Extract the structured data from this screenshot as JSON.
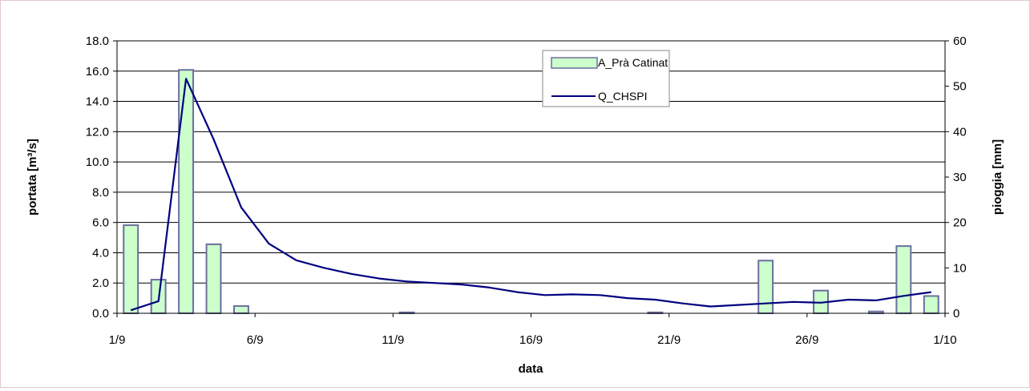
{
  "chart_data": {
    "type": "bar+line",
    "title": "",
    "xlabel": "data",
    "ylabel_left": "portata [m³/s]",
    "ylabel_right": "pioggia [mm]",
    "x_ticks": [
      "1/9",
      "6/9",
      "11/9",
      "16/9",
      "21/9",
      "26/9",
      "1/10"
    ],
    "y_left_ticks": [
      "0.0",
      "2.0",
      "4.0",
      "6.0",
      "8.0",
      "10.0",
      "12.0",
      "14.0",
      "16.0",
      "18.0"
    ],
    "y_right_ticks": [
      "0",
      "10",
      "20",
      "30",
      "40",
      "50",
      "60"
    ],
    "y_left_range": [
      0,
      18
    ],
    "y_right_range": [
      0,
      60
    ],
    "x_range": [
      "1/9",
      "1/10"
    ],
    "grid": "horizontal",
    "legend_position": "top-center",
    "series": [
      {
        "name": "A_Prà Catinat",
        "type": "bar",
        "axis": "right",
        "color": "#ccffcc",
        "edge_color": "#6b6f9e",
        "x": [
          "1/9",
          "2/9",
          "3/9",
          "4/9",
          "5/9",
          "6/9",
          "7/9",
          "8/9",
          "9/9",
          "10/9",
          "11/9",
          "12/9",
          "13/9",
          "14/9",
          "15/9",
          "16/9",
          "17/9",
          "18/9",
          "19/9",
          "20/9",
          "21/9",
          "22/9",
          "23/9",
          "24/9",
          "25/9",
          "26/9",
          "27/9",
          "28/9",
          "29/9",
          "30/9"
        ],
        "values": [
          19.4,
          7.4,
          53.6,
          15.2,
          1.6,
          0,
          0,
          0,
          0,
          0,
          0.2,
          0,
          0,
          0,
          0,
          0,
          0,
          0,
          0,
          0.2,
          0,
          0,
          0,
          11.6,
          0,
          5.0,
          0,
          0.4,
          14.8,
          3.8
        ]
      },
      {
        "name": "Q_CHSPI",
        "type": "line",
        "axis": "left",
        "color": "#000080",
        "x": [
          "1/9",
          "2/9",
          "3/9",
          "4/9",
          "5/9",
          "6/9",
          "7/9",
          "8/9",
          "9/9",
          "10/9",
          "11/9",
          "12/9",
          "13/9",
          "14/9",
          "15/9",
          "16/9",
          "17/9",
          "18/9",
          "19/9",
          "20/9",
          "21/9",
          "22/9",
          "23/9",
          "24/9",
          "25/9",
          "26/9",
          "27/9",
          "28/9",
          "29/9",
          "30/9"
        ],
        "values": [
          0.2,
          0.8,
          15.5,
          11.5,
          7.0,
          4.6,
          3.5,
          3.0,
          2.6,
          2.3,
          2.1,
          2.0,
          1.9,
          1.7,
          1.4,
          1.2,
          1.25,
          1.2,
          1.0,
          0.9,
          0.65,
          0.45,
          0.55,
          0.65,
          0.75,
          0.7,
          0.9,
          0.85,
          1.15,
          1.4
        ]
      }
    ]
  }
}
